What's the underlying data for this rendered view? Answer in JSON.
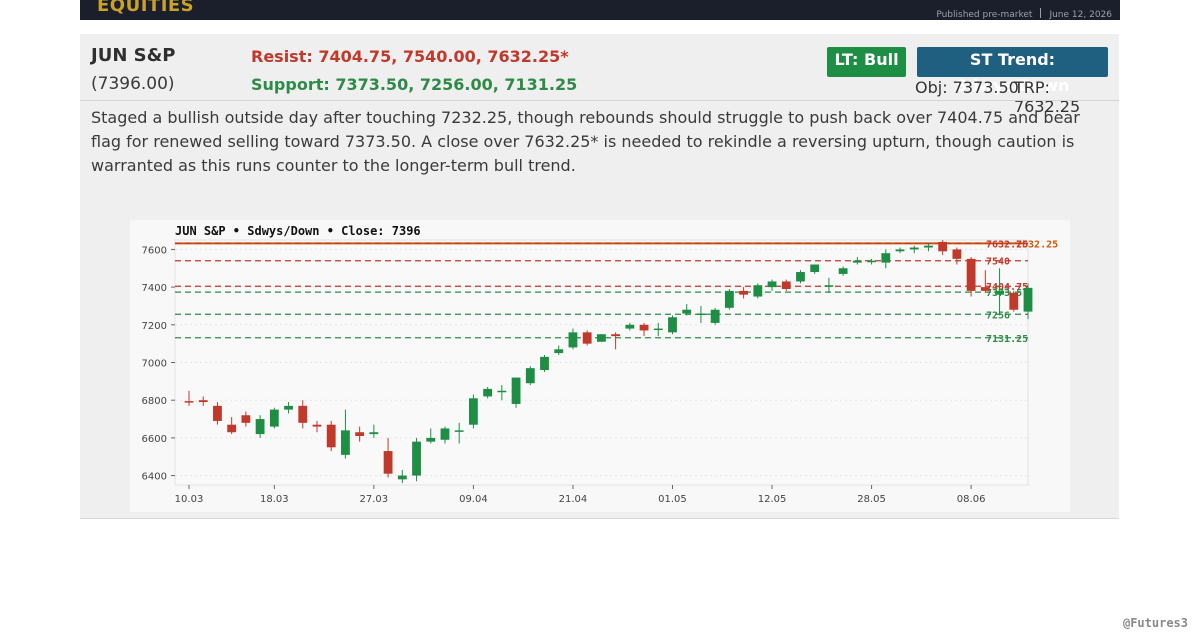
{
  "header": {
    "brand": "EQUITIES",
    "published": "Published pre-market",
    "date": "June 12, 2026"
  },
  "card": {
    "instrument": "JUN S&P",
    "price": "(7396.00)",
    "resist": "Resist: 7404.75, 7540.00, 7632.25*",
    "support": "Support: 7373.50, 7256.00, 7131.25",
    "lt_trend": "LT: Bull",
    "st_trend": "ST Trend: Sdwys/Down",
    "objective": "Obj: 7373.50",
    "trp": "TRP: 7632.25",
    "commentary": "Staged a bullish outside day after touching 7232.25, though rebounds should struggle to push back over 7404.75 and bear flag for renewed selling toward 7373.50. A close over 7632.25* is needed to rekindle a reversing upturn, though caution is warranted as this runs counter to the longer-term bull trend."
  },
  "footer": {
    "handle": "@Futures3"
  },
  "colors": {
    "up": "#1e8e45",
    "down": "#c0392b",
    "resistance": "#c0392b",
    "support": "#2e8b47",
    "trp": "#d35400",
    "chart_bg": "#f8f8f8"
  },
  "chart_data": {
    "type": "candlestick",
    "title": "JUN S&P  •  Sdwys/Down  •  Close: 7396",
    "ylim": [
      6350,
      7650
    ],
    "y_ticks": [
      6400,
      6600,
      6800,
      7000,
      7200,
      7400,
      7600
    ],
    "x_ticks": [
      {
        "label": "10.03",
        "index": 0
      },
      {
        "label": "18.03",
        "index": 6
      },
      {
        "label": "27.03",
        "index": 13
      },
      {
        "label": "09.04",
        "index": 20
      },
      {
        "label": "21.04",
        "index": 27
      },
      {
        "label": "01.05",
        "index": 34
      },
      {
        "label": "12.05",
        "index": 41
      },
      {
        "label": "28.05",
        "index": 48
      },
      {
        "label": "08.06",
        "index": 55
      }
    ],
    "grid": "horizontal",
    "levels": [
      {
        "value": 7632.25,
        "label": "7632.25",
        "kind": "trp",
        "style": "solid"
      },
      {
        "value": 7632.25,
        "label": "7632.25",
        "kind": "resistance",
        "style": "dashed"
      },
      {
        "value": 7540,
        "label": "7540",
        "kind": "resistance",
        "style": "dashed"
      },
      {
        "value": 7404.75,
        "label": "7404.75",
        "kind": "resistance",
        "style": "dashed"
      },
      {
        "value": 7373.5,
        "label": "7373.5",
        "kind": "support",
        "style": "dashed"
      },
      {
        "value": 7256,
        "label": "7256",
        "kind": "support",
        "style": "dashed"
      },
      {
        "value": 7131.25,
        "label": "7131.25",
        "kind": "support",
        "style": "dashed"
      }
    ],
    "candles": [
      {
        "o": 6795,
        "h": 6850,
        "l": 6770,
        "c": 6790
      },
      {
        "o": 6800,
        "h": 6820,
        "l": 6770,
        "c": 6790
      },
      {
        "o": 6770,
        "h": 6790,
        "l": 6670,
        "c": 6690
      },
      {
        "o": 6670,
        "h": 6710,
        "l": 6620,
        "c": 6630
      },
      {
        "o": 6720,
        "h": 6740,
        "l": 6660,
        "c": 6680
      },
      {
        "o": 6620,
        "h": 6720,
        "l": 6600,
        "c": 6700
      },
      {
        "o": 6660,
        "h": 6760,
        "l": 6650,
        "c": 6750
      },
      {
        "o": 6750,
        "h": 6790,
        "l": 6730,
        "c": 6770
      },
      {
        "o": 6770,
        "h": 6800,
        "l": 6650,
        "c": 6680
      },
      {
        "o": 6670,
        "h": 6690,
        "l": 6630,
        "c": 6660
      },
      {
        "o": 6670,
        "h": 6690,
        "l": 6530,
        "c": 6550
      },
      {
        "o": 6510,
        "h": 6750,
        "l": 6490,
        "c": 6640
      },
      {
        "o": 6630,
        "h": 6660,
        "l": 6580,
        "c": 6610
      },
      {
        "o": 6620,
        "h": 6670,
        "l": 6600,
        "c": 6630
      },
      {
        "o": 6530,
        "h": 6600,
        "l": 6390,
        "c": 6410
      },
      {
        "o": 6380,
        "h": 6430,
        "l": 6360,
        "c": 6400
      },
      {
        "o": 6400,
        "h": 6600,
        "l": 6370,
        "c": 6580
      },
      {
        "o": 6580,
        "h": 6650,
        "l": 6570,
        "c": 6600
      },
      {
        "o": 6590,
        "h": 6660,
        "l": 6570,
        "c": 6650
      },
      {
        "o": 6640,
        "h": 6680,
        "l": 6570,
        "c": 6640
      },
      {
        "o": 6670,
        "h": 6830,
        "l": 6650,
        "c": 6810
      },
      {
        "o": 6820,
        "h": 6870,
        "l": 6810,
        "c": 6860
      },
      {
        "o": 6850,
        "h": 6880,
        "l": 6800,
        "c": 6850
      },
      {
        "o": 6780,
        "h": 6920,
        "l": 6760,
        "c": 6920
      },
      {
        "o": 6890,
        "h": 6980,
        "l": 6880,
        "c": 6970
      },
      {
        "o": 6960,
        "h": 7040,
        "l": 6950,
        "c": 7030
      },
      {
        "o": 7050,
        "h": 7090,
        "l": 7040,
        "c": 7070
      },
      {
        "o": 7080,
        "h": 7180,
        "l": 7070,
        "c": 7160
      },
      {
        "o": 7160,
        "h": 7170,
        "l": 7090,
        "c": 7100
      },
      {
        "o": 7110,
        "h": 7150,
        "l": 7110,
        "c": 7150
      },
      {
        "o": 7150,
        "h": 7160,
        "l": 7070,
        "c": 7140
      },
      {
        "o": 7180,
        "h": 7210,
        "l": 7170,
        "c": 7200
      },
      {
        "o": 7200,
        "h": 7210,
        "l": 7140,
        "c": 7170
      },
      {
        "o": 7180,
        "h": 7210,
        "l": 7140,
        "c": 7180
      },
      {
        "o": 7160,
        "h": 7250,
        "l": 7150,
        "c": 7240
      },
      {
        "o": 7260,
        "h": 7310,
        "l": 7250,
        "c": 7280
      },
      {
        "o": 7260,
        "h": 7300,
        "l": 7210,
        "c": 7260
      },
      {
        "o": 7210,
        "h": 7290,
        "l": 7200,
        "c": 7280
      },
      {
        "o": 7290,
        "h": 7390,
        "l": 7280,
        "c": 7380
      },
      {
        "o": 7380,
        "h": 7400,
        "l": 7340,
        "c": 7360
      },
      {
        "o": 7350,
        "h": 7420,
        "l": 7340,
        "c": 7410
      },
      {
        "o": 7400,
        "h": 7440,
        "l": 7380,
        "c": 7430
      },
      {
        "o": 7430,
        "h": 7440,
        "l": 7380,
        "c": 7390
      },
      {
        "o": 7430,
        "h": 7490,
        "l": 7420,
        "c": 7480
      },
      {
        "o": 7480,
        "h": 7520,
        "l": 7470,
        "c": 7520
      },
      {
        "o": 7410,
        "h": 7450,
        "l": 7370,
        "c": 7410
      },
      {
        "o": 7470,
        "h": 7510,
        "l": 7460,
        "c": 7500
      },
      {
        "o": 7530,
        "h": 7560,
        "l": 7520,
        "c": 7540
      },
      {
        "o": 7540,
        "h": 7550,
        "l": 7520,
        "c": 7540
      },
      {
        "o": 7530,
        "h": 7600,
        "l": 7500,
        "c": 7580
      },
      {
        "o": 7590,
        "h": 7610,
        "l": 7580,
        "c": 7600
      },
      {
        "o": 7600,
        "h": 7620,
        "l": 7580,
        "c": 7610
      },
      {
        "o": 7610,
        "h": 7630,
        "l": 7590,
        "c": 7620
      },
      {
        "o": 7640,
        "h": 7650,
        "l": 7570,
        "c": 7590
      },
      {
        "o": 7600,
        "h": 7610,
        "l": 7520,
        "c": 7550
      },
      {
        "o": 7550,
        "h": 7560,
        "l": 7350,
        "c": 7380
      },
      {
        "o": 7400,
        "h": 7490,
        "l": 7370,
        "c": 7380
      },
      {
        "o": 7360,
        "h": 7500,
        "l": 7250,
        "c": 7380
      },
      {
        "o": 7370,
        "h": 7380,
        "l": 7270,
        "c": 7280
      },
      {
        "o": 7270,
        "h": 7420,
        "l": 7230,
        "c": 7396
      }
    ]
  }
}
